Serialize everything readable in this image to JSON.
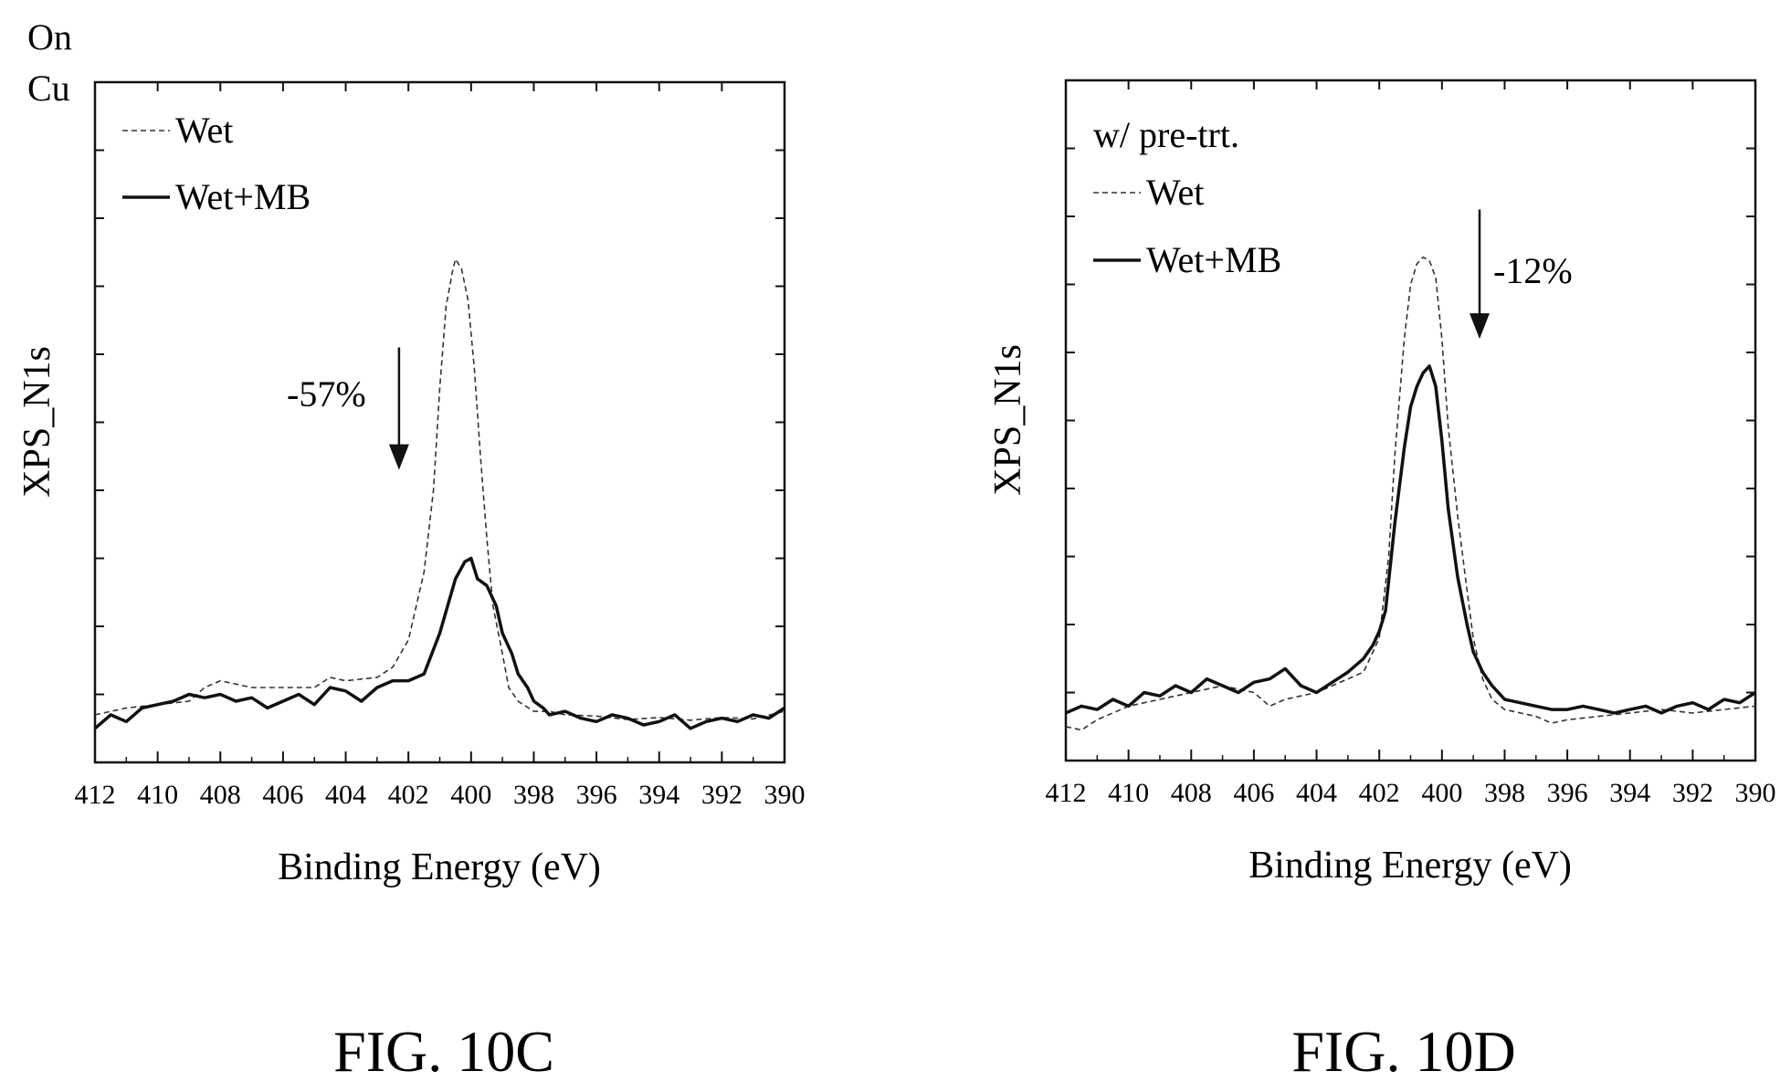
{
  "chart_data": [
    {
      "type": "line",
      "figure_label": "FIG. 10C",
      "sample_label": [
        "On",
        "Cu"
      ],
      "inset_label": "",
      "xlabel": "Binding Energy (eV)",
      "ylabel": "XPS_N1s",
      "xlim": [
        412,
        390
      ],
      "x_reversed": true,
      "xticks": [
        412,
        410,
        408,
        406,
        404,
        402,
        400,
        398,
        396,
        394,
        392,
        390
      ],
      "ylim": [
        0,
        100
      ],
      "y_tick_labels_shown": false,
      "legend_placement": "top-left",
      "annotation": {
        "text": "-57%",
        "x": 402.3,
        "y_from": 61,
        "y_to": 43
      },
      "series": [
        {
          "name": "Wet",
          "style": "dashed",
          "x": [
            412,
            411,
            410,
            409,
            408.5,
            408,
            407.5,
            407,
            406,
            405,
            404.5,
            404,
            403,
            402.5,
            402,
            401.5,
            401.2,
            401,
            400.8,
            400.6,
            400.5,
            400.3,
            400.1,
            399.9,
            399.7,
            399.5,
            399.3,
            399,
            398.8,
            398.5,
            398,
            397.5,
            397,
            396,
            395,
            394,
            393,
            392,
            391,
            390
          ],
          "y": [
            7,
            8,
            8.5,
            9,
            11,
            12,
            11.5,
            11,
            11,
            11,
            12.5,
            12,
            12.5,
            14,
            18,
            28,
            40,
            55,
            67,
            72,
            74,
            72.5,
            68,
            58,
            45,
            33,
            23,
            16,
            11,
            9,
            7.5,
            7.5,
            7,
            6.8,
            6.3,
            6.6,
            6.2,
            6.6,
            6.4,
            7.5
          ]
        },
        {
          "name": "Wet+MB",
          "style": "solid",
          "x": [
            412,
            411.5,
            411,
            410.5,
            410,
            409.5,
            409,
            408.5,
            408,
            407.5,
            407,
            406.5,
            406,
            405.5,
            405,
            404.5,
            404,
            403.5,
            403,
            402.5,
            402,
            401.5,
            401,
            400.5,
            400.2,
            400,
            399.8,
            399.5,
            399.2,
            399,
            398.7,
            398.5,
            398.2,
            398,
            397.7,
            397.5,
            397,
            396.5,
            396,
            395.5,
            395,
            394.5,
            394,
            393.5,
            393,
            392.5,
            392,
            391.5,
            391,
            390.5,
            390
          ],
          "y": [
            5,
            7,
            6,
            8,
            8.5,
            9,
            10,
            9.5,
            10,
            9,
            9.5,
            8,
            9,
            10,
            8.5,
            11,
            10.5,
            9,
            11,
            12,
            12,
            13,
            19,
            27,
            29.5,
            30,
            27,
            26,
            23,
            19,
            16,
            13,
            11,
            9,
            8,
            7,
            7.5,
            6.5,
            6,
            7,
            6.5,
            5.5,
            6,
            7,
            5,
            6,
            6.5,
            6,
            7,
            6.5,
            8
          ]
        }
      ]
    },
    {
      "type": "line",
      "figure_label": "FIG. 10D",
      "sample_label": [],
      "inset_label": "w/ pre-trt.",
      "xlabel": "Binding Energy (eV)",
      "ylabel": "XPS_N1s",
      "xlim": [
        412,
        390
      ],
      "x_reversed": true,
      "xticks": [
        412,
        410,
        408,
        406,
        404,
        402,
        400,
        398,
        396,
        394,
        392,
        390
      ],
      "ylim": [
        0,
        100
      ],
      "y_tick_labels_shown": false,
      "legend_placement": "top-left",
      "annotation": {
        "text": "-12%",
        "x": 398.8,
        "y_from": 81,
        "y_to": 62
      },
      "series": [
        {
          "name": "Wet",
          "style": "dashed",
          "x": [
            412,
            411.5,
            411,
            410.5,
            410,
            409.5,
            409,
            408.5,
            408,
            407,
            406,
            405.5,
            405,
            404.5,
            404,
            403.5,
            403,
            402.5,
            402,
            401.7,
            401.5,
            401.2,
            401,
            400.8,
            400.6,
            400.4,
            400.2,
            400,
            399.8,
            399.5,
            399.2,
            399,
            398.7,
            398.4,
            398,
            397.5,
            397,
            396.5,
            396,
            395,
            394,
            393,
            392,
            391,
            390
          ],
          "y": [
            5,
            4.5,
            6,
            7,
            8,
            8.5,
            9,
            9.5,
            10,
            11,
            10,
            8,
            9,
            9.5,
            10,
            11,
            12,
            13,
            18,
            30,
            45,
            62,
            70,
            73,
            74,
            73.5,
            71,
            62,
            49,
            36,
            25,
            18,
            12,
            9,
            7.5,
            7,
            6.5,
            5.5,
            6,
            6.5,
            7,
            7.5,
            7,
            7.5,
            8
          ]
        },
        {
          "name": "Wet+MB",
          "style": "solid",
          "x": [
            412,
            411.5,
            411,
            410.5,
            410,
            409.5,
            409,
            408.5,
            408,
            407.5,
            407,
            406.5,
            406,
            405.5,
            405,
            404.5,
            404,
            403.5,
            403,
            402.5,
            402.2,
            402,
            401.8,
            401.5,
            401.2,
            401,
            400.8,
            400.6,
            400.4,
            400.2,
            400,
            399.8,
            399.5,
            399.2,
            399,
            398.7,
            398.4,
            398,
            397.5,
            397,
            396.5,
            396,
            395.5,
            395,
            394.5,
            394,
            393.5,
            393,
            392.5,
            392,
            391.5,
            391,
            390.5,
            390
          ],
          "y": [
            7,
            8,
            7.5,
            9,
            8,
            10,
            9.5,
            11,
            10,
            12,
            11,
            10,
            11.5,
            12,
            13.5,
            11,
            10,
            11.5,
            13,
            15,
            17,
            19,
            22,
            35,
            46,
            52,
            55,
            57,
            58,
            55,
            47,
            37,
            27,
            20,
            16,
            13,
            11,
            9,
            8.5,
            8,
            7.5,
            7.5,
            8,
            7.5,
            7,
            7.5,
            8,
            7,
            8,
            8.5,
            7.5,
            9,
            8.5,
            10
          ]
        }
      ]
    }
  ]
}
